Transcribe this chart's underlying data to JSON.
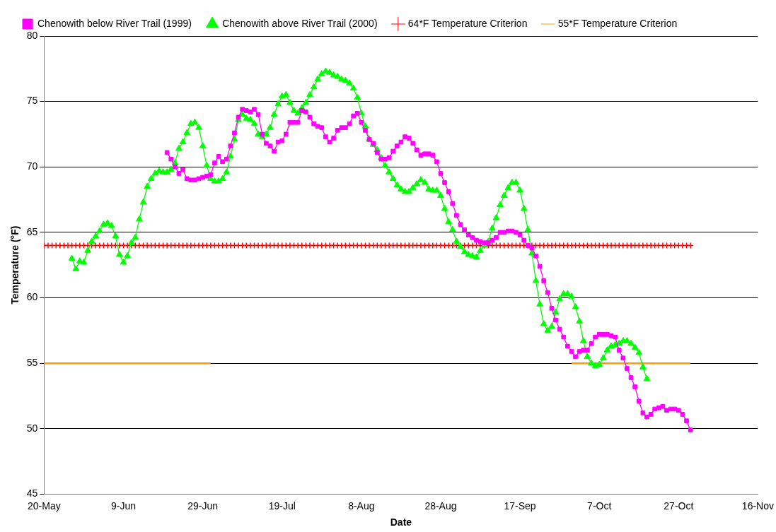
{
  "chart_data": {
    "type": "line",
    "xlabel": "Date",
    "ylabel": "Temperature (°F)",
    "x": [
      "--05-20",
      "--05-21",
      "--05-22",
      "--05-23",
      "--05-24",
      "--05-25",
      "--05-26",
      "--05-27",
      "--05-28",
      "--05-29",
      "--05-30",
      "--05-31",
      "--06-01",
      "--06-02",
      "--06-03",
      "--06-04",
      "--06-05",
      "--06-06",
      "--06-07",
      "--06-08",
      "--06-09",
      "--06-10",
      "--06-11",
      "--06-12",
      "--06-13",
      "--06-14",
      "--06-15",
      "--06-16",
      "--06-17",
      "--06-18",
      "--06-19",
      "--06-20",
      "--06-21",
      "--06-22",
      "--06-23",
      "--06-24",
      "--06-25",
      "--06-26",
      "--06-27",
      "--06-28",
      "--06-29",
      "--06-30",
      "--07-01",
      "--07-02",
      "--07-03",
      "--07-04",
      "--07-05",
      "--07-06",
      "--07-07",
      "--07-08",
      "--07-09",
      "--07-10",
      "--07-11",
      "--07-12",
      "--07-13",
      "--07-14",
      "--07-15",
      "--07-16",
      "--07-17",
      "--07-18",
      "--07-19",
      "--07-20",
      "--07-21",
      "--07-22",
      "--07-23",
      "--07-24",
      "--07-25",
      "--07-26",
      "--07-27",
      "--07-28",
      "--07-29",
      "--07-30",
      "--07-31",
      "--08-01",
      "--08-02",
      "--08-03",
      "--08-04",
      "--08-05",
      "--08-06",
      "--08-07",
      "--08-08",
      "--08-09",
      "--08-10",
      "--08-11",
      "--08-12",
      "--08-13",
      "--08-14",
      "--08-15",
      "--08-16",
      "--08-17",
      "--08-18",
      "--08-19",
      "--08-20",
      "--08-21",
      "--08-22",
      "--08-23",
      "--08-24",
      "--08-25",
      "--08-26",
      "--08-27",
      "--08-28",
      "--08-29",
      "--08-30",
      "--08-31",
      "--09-01",
      "--09-02",
      "--09-03",
      "--09-04",
      "--09-05",
      "--09-06",
      "--09-07",
      "--09-08",
      "--09-09",
      "--09-10",
      "--09-11",
      "--09-12",
      "--09-13",
      "--09-14",
      "--09-15",
      "--09-16",
      "--09-17",
      "--09-18",
      "--09-19",
      "--09-20",
      "--09-21",
      "--09-22",
      "--09-23",
      "--09-24",
      "--09-25",
      "--09-26",
      "--09-27",
      "--09-28",
      "--09-29",
      "--09-30",
      "--10-01",
      "--10-02",
      "--10-03",
      "--10-04",
      "--10-05",
      "--10-06",
      "--10-07",
      "--10-08",
      "--10-09",
      "--10-10",
      "--10-11",
      "--10-12",
      "--10-13",
      "--10-14",
      "--10-15",
      "--10-16",
      "--10-17",
      "--10-18",
      "--10-19",
      "--10-20",
      "--10-21",
      "--10-22",
      "--10-23",
      "--10-24",
      "--10-25",
      "--10-26",
      "--10-27",
      "--10-28",
      "--10-29",
      "--10-30"
    ],
    "series": [
      {
        "name": "Chenowith below River Trail (1999)",
        "color": "#ff00ff",
        "marker": "square",
        "values": [
          null,
          null,
          null,
          null,
          null,
          null,
          null,
          null,
          null,
          null,
          null,
          null,
          null,
          null,
          null,
          null,
          null,
          null,
          null,
          null,
          null,
          null,
          null,
          null,
          null,
          null,
          null,
          null,
          null,
          null,
          null,
          71.1,
          70.6,
          70.0,
          69.5,
          69.8,
          69.1,
          69.0,
          69.0,
          69.1,
          69.2,
          69.3,
          69.4,
          70.3,
          70.8,
          70.4,
          70.6,
          71.6,
          72.6,
          73.8,
          74.4,
          74.3,
          74.2,
          74.4,
          74.0,
          72.5,
          71.8,
          71.6,
          71.2,
          71.9,
          72.0,
          72.5,
          73.4,
          73.4,
          73.4,
          74.3,
          74.2,
          73.8,
          73.3,
          73.1,
          73.0,
          72.3,
          71.9,
          72.2,
          72.8,
          73.0,
          73.0,
          73.3,
          73.9,
          74.1,
          73.4,
          72.8,
          72.1,
          71.8,
          71.1,
          70.6,
          70.6,
          70.7,
          71.2,
          71.6,
          71.9,
          72.3,
          72.2,
          71.8,
          71.3,
          70.9,
          71.0,
          71.0,
          70.9,
          70.4,
          69.5,
          68.8,
          68.1,
          67.2,
          66.3,
          65.6,
          65.2,
          64.8,
          64.6,
          64.4,
          64.3,
          64.2,
          64.2,
          64.4,
          64.6,
          65.0,
          65.0,
          65.1,
          65.1,
          65.0,
          64.8,
          64.4,
          64.0,
          63.8,
          63.2,
          62.4,
          61.3,
          60.4,
          59.2,
          58.3,
          57.6,
          57.0,
          56.3,
          55.9,
          55.5,
          55.9,
          56.0,
          56.0,
          56.5,
          57.0,
          57.2,
          57.2,
          57.2,
          57.1,
          57.0,
          56.0,
          55.4,
          54.6,
          53.9,
          53.2,
          52.1,
          51.2,
          50.9,
          51.1,
          51.5,
          51.6,
          51.7,
          51.4,
          51.5,
          51.5,
          51.4,
          51.1,
          50.6,
          49.9
        ]
      },
      {
        "name": "Chenowith above River Trail (2000)",
        "color": "#00ff00",
        "marker": "triangle",
        "values": [
          null,
          null,
          null,
          null,
          null,
          null,
          null,
          63.0,
          62.2,
          62.8,
          62.7,
          63.6,
          64.3,
          64.7,
          65.1,
          65.6,
          65.7,
          65.5,
          64.7,
          63.3,
          62.7,
          63.2,
          64.2,
          64.6,
          66.0,
          67.3,
          68.5,
          69.1,
          69.5,
          69.7,
          69.6,
          69.6,
          69.8,
          70.3,
          71.4,
          71.9,
          72.6,
          73.3,
          73.4,
          73.0,
          71.6,
          70.1,
          69.1,
          68.9,
          68.9,
          69.1,
          69.6,
          70.8,
          72.1,
          73.6,
          74.0,
          73.7,
          73.6,
          73.3,
          72.5,
          72.3,
          72.5,
          73.0,
          74.0,
          74.8,
          75.4,
          75.5,
          74.9,
          74.3,
          74.1,
          74.5,
          74.9,
          75.5,
          76.1,
          76.7,
          77.1,
          77.3,
          77.2,
          77.0,
          76.9,
          76.7,
          76.6,
          76.4,
          76.0,
          75.3,
          74.1,
          73.1,
          72.1,
          71.7,
          71.3,
          70.7,
          70.1,
          69.6,
          69.1,
          68.6,
          68.3,
          68.1,
          68.1,
          68.4,
          68.7,
          69.0,
          68.8,
          68.3,
          68.2,
          68.2,
          67.8,
          66.8,
          65.8,
          65.2,
          64.3,
          63.9,
          63.5,
          63.3,
          63.2,
          63.1,
          63.6,
          64.0,
          64.3,
          65.3,
          66.1,
          67.1,
          67.8,
          68.4,
          68.8,
          68.8,
          68.2,
          66.8,
          65.2,
          63.4,
          61.3,
          59.5,
          58.0,
          57.5,
          57.8,
          58.9,
          59.9,
          60.3,
          60.3,
          60.1,
          59.3,
          58.2,
          56.7,
          55.5,
          55.0,
          54.8,
          54.9,
          55.4,
          56.0,
          56.3,
          56.4,
          56.5,
          56.7,
          56.7,
          56.5,
          56.2,
          55.8,
          54.7,
          53.8,
          null,
          null,
          null,
          null,
          null,
          null,
          null,
          null,
          null,
          null,
          null
        ]
      },
      {
        "name": "64*F Temperature Criterion",
        "color": "#ff0000",
        "marker": "cross",
        "line_style": "dashed",
        "values": [
          64,
          64,
          64,
          64,
          64,
          64,
          64,
          64,
          64,
          64,
          64,
          64,
          64,
          64,
          64,
          64,
          64,
          64,
          64,
          64,
          64,
          64,
          64,
          64,
          64,
          64,
          64,
          64,
          64,
          64,
          64,
          64,
          64,
          64,
          64,
          64,
          64,
          64,
          64,
          64,
          64,
          64,
          64,
          64,
          64,
          64,
          64,
          64,
          64,
          64,
          64,
          64,
          64,
          64,
          64,
          64,
          64,
          64,
          64,
          64,
          64,
          64,
          64,
          64,
          64,
          64,
          64,
          64,
          64,
          64,
          64,
          64,
          64,
          64,
          64,
          64,
          64,
          64,
          64,
          64,
          64,
          64,
          64,
          64,
          64,
          64,
          64,
          64,
          64,
          64,
          64,
          64,
          64,
          64,
          64,
          64,
          64,
          64,
          64,
          64,
          64,
          64,
          64,
          64,
          64,
          64,
          64,
          64,
          64,
          64,
          64,
          64,
          64,
          64,
          64,
          64,
          64,
          64,
          64,
          64,
          64,
          64,
          64,
          64,
          64,
          64,
          64,
          64,
          64,
          64,
          64,
          64,
          64,
          64,
          64,
          64,
          64,
          64,
          64,
          64,
          64,
          64,
          64,
          64,
          64,
          64,
          64,
          64,
          64,
          64,
          64,
          64,
          64,
          64,
          64,
          64,
          64,
          64,
          64,
          64,
          64,
          64,
          64,
          64
        ]
      },
      {
        "name": "55*F Temperature Criterion",
        "color": "#ff9900",
        "marker": "none",
        "values": [
          55,
          55,
          55,
          55,
          55,
          55,
          55,
          55,
          55,
          55,
          55,
          55,
          55,
          55,
          55,
          55,
          55,
          55,
          55,
          55,
          55,
          55,
          55,
          55,
          55,
          55,
          55,
          55,
          55,
          55,
          55,
          55,
          55,
          55,
          55,
          55,
          55,
          55,
          55,
          55,
          55,
          55,
          55,
          null,
          null,
          null,
          null,
          null,
          null,
          null,
          null,
          null,
          null,
          null,
          null,
          null,
          null,
          null,
          null,
          null,
          null,
          null,
          null,
          null,
          null,
          null,
          null,
          null,
          null,
          null,
          null,
          null,
          null,
          null,
          null,
          null,
          null,
          null,
          null,
          null,
          null,
          null,
          null,
          null,
          null,
          null,
          null,
          null,
          null,
          null,
          null,
          null,
          null,
          null,
          null,
          null,
          null,
          null,
          null,
          null,
          null,
          null,
          null,
          null,
          null,
          null,
          null,
          null,
          null,
          null,
          null,
          null,
          null,
          null,
          null,
          null,
          null,
          null,
          null,
          null,
          null,
          null,
          null,
          null,
          null,
          null,
          null,
          null,
          null,
          null,
          null,
          null,
          null,
          55,
          55,
          55,
          55,
          55,
          55,
          55,
          55,
          55,
          55,
          55,
          55,
          55,
          55,
          55,
          55,
          55,
          55,
          55,
          55,
          55,
          55,
          55,
          55,
          55,
          55,
          55,
          55,
          55,
          55,
          55
        ]
      }
    ],
    "xlim": [
      "--05-20",
      "--11-16"
    ],
    "xticks": [
      {
        "value": "--05-20",
        "label": "20-May"
      },
      {
        "value": "--06-09",
        "label": "9-Jun"
      },
      {
        "value": "--06-29",
        "label": "29-Jun"
      },
      {
        "value": "--07-19",
        "label": "19-Jul"
      },
      {
        "value": "--08-08",
        "label": "8-Aug"
      },
      {
        "value": "--08-28",
        "label": "28-Aug"
      },
      {
        "value": "--09-17",
        "label": "17-Sep"
      },
      {
        "value": "--10-07",
        "label": "7-Oct"
      },
      {
        "value": "--10-27",
        "label": "27-Oct"
      },
      {
        "value": "--11-16",
        "label": "16-Nov"
      }
    ],
    "ylim": [
      45,
      80
    ],
    "yticks": [
      45,
      50,
      55,
      60,
      65,
      70,
      75,
      80
    ],
    "grid": "y",
    "legend": "top left"
  }
}
